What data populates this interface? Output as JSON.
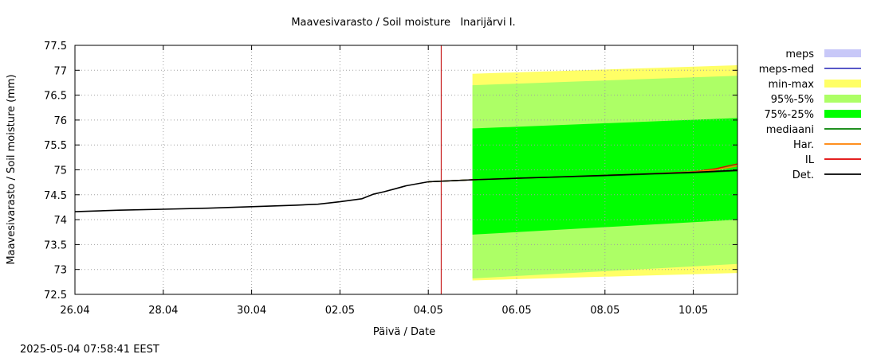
{
  "colors": {
    "meps": "#c8c8f8",
    "meps_med": "#4040c0",
    "min_max": "#ffff66",
    "p95_5": "#adff66",
    "p75_25": "#00ff00",
    "mediaani": "#008000",
    "har": "#ff8000",
    "il": "#e00000",
    "det": "#000000",
    "grid": "#a0a0a0",
    "now_line": "#c00000"
  },
  "chart_data": {
    "type": "line",
    "title": "Maavesivarasto / Soil moisture   Inarijärvi I.",
    "xlabel": "Päivä / Date",
    "ylabel": "Maavesivarasto / Soil moisture (mm)",
    "xlim": [
      "2025-04-26",
      "2025-05-11"
    ],
    "ylim": [
      72.5,
      77.5
    ],
    "xticks": [
      {
        "date": "2025-04-26",
        "label": "26.04"
      },
      {
        "date": "2025-04-28",
        "label": "28.04"
      },
      {
        "date": "2025-04-30",
        "label": "30.04"
      },
      {
        "date": "2025-05-02",
        "label": "02.05"
      },
      {
        "date": "2025-05-04",
        "label": "04.05"
      },
      {
        "date": "2025-05-06",
        "label": "06.05"
      },
      {
        "date": "2025-05-08",
        "label": "08.05"
      },
      {
        "date": "2025-05-10",
        "label": "10.05"
      }
    ],
    "yticks": [
      72.5,
      73,
      73.5,
      74,
      74.5,
      75,
      75.5,
      76,
      76.5,
      77,
      77.5
    ],
    "grid": true,
    "legend_position": "right",
    "forecast_start": "2025-05-04T07:00",
    "legend": [
      "meps",
      "meps-med",
      "min-max",
      "95%-5%",
      "75%-25%",
      "mediaani",
      "Har.",
      "IL",
      "Det."
    ],
    "bands": [
      {
        "name": "min-max",
        "x": [
          "2025-05-05",
          "2025-05-11"
        ],
        "lower": [
          72.78,
          72.93
        ],
        "upper": [
          76.93,
          77.1
        ]
      },
      {
        "name": "95%-5%",
        "x": [
          "2025-05-05",
          "2025-05-11"
        ],
        "lower": [
          72.82,
          73.11
        ],
        "upper": [
          76.7,
          76.89
        ]
      },
      {
        "name": "75%-25%",
        "x": [
          "2025-05-05",
          "2025-05-11"
        ],
        "lower": [
          73.7,
          74.0
        ],
        "upper": [
          75.83,
          76.04
        ]
      }
    ],
    "series": [
      {
        "name": "Det.",
        "x": [
          "2025-04-26",
          "2025-04-27",
          "2025-04-28",
          "2025-04-29",
          "2025-04-30",
          "2025-05-01",
          "2025-05-01T12:00",
          "2025-05-02",
          "2025-05-02T12:00",
          "2025-05-02T18:00",
          "2025-05-03",
          "2025-05-03T06:00",
          "2025-05-03T12:00",
          "2025-05-04",
          "2025-05-05",
          "2025-05-06",
          "2025-05-07",
          "2025-05-08",
          "2025-05-09",
          "2025-05-10",
          "2025-05-11"
        ],
        "values": [
          74.16,
          74.19,
          74.21,
          74.23,
          74.26,
          74.29,
          74.31,
          74.36,
          74.42,
          74.51,
          74.56,
          74.62,
          74.68,
          74.76,
          74.8,
          74.83,
          74.86,
          74.89,
          74.92,
          74.95,
          74.99
        ]
      },
      {
        "name": "mediaani",
        "x": [
          "2025-05-04",
          "2025-05-05",
          "2025-05-06",
          "2025-05-07",
          "2025-05-08",
          "2025-05-09",
          "2025-05-10",
          "2025-05-11"
        ],
        "values": [
          74.76,
          74.8,
          74.83,
          74.86,
          74.88,
          74.91,
          74.94,
          74.98
        ]
      },
      {
        "name": "Har.",
        "x": [
          "2025-05-04",
          "2025-05-05",
          "2025-05-06",
          "2025-05-07",
          "2025-05-08",
          "2025-05-09",
          "2025-05-10",
          "2025-05-10T12:00",
          "2025-05-11"
        ],
        "values": [
          74.76,
          74.8,
          74.83,
          74.86,
          74.89,
          74.92,
          74.96,
          75.0,
          75.08
        ]
      },
      {
        "name": "IL",
        "x": [
          "2025-05-04",
          "2025-05-05",
          "2025-05-06",
          "2025-05-07",
          "2025-05-08",
          "2025-05-09",
          "2025-05-10",
          "2025-05-10T12:00",
          "2025-05-11"
        ],
        "values": [
          74.76,
          74.8,
          74.83,
          74.86,
          74.89,
          74.92,
          74.96,
          75.02,
          75.12
        ]
      }
    ]
  },
  "footer": {
    "timestamp": "2025-05-04 07:58:41 EEST"
  }
}
